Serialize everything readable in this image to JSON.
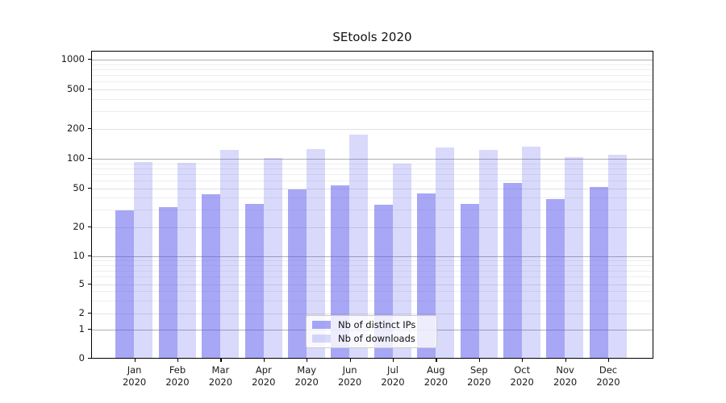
{
  "chart_data": {
    "type": "bar",
    "title": "SEtools 2020",
    "categories": [
      "Jan",
      "Feb",
      "Mar",
      "Apr",
      "May",
      "Jun",
      "Jul",
      "Aug",
      "Sep",
      "Oct",
      "Nov",
      "Dec"
    ],
    "category_year": "2020",
    "series": [
      {
        "name": "Nb of distinct IPs",
        "color": "rgba(80,80,235,0.5)",
        "values": [
          30,
          32,
          44,
          35,
          49,
          54,
          34,
          45,
          35,
          57,
          39,
          52
        ]
      },
      {
        "name": "Nb of downloads",
        "color": "rgba(80,80,235,0.22)",
        "values": [
          93,
          91,
          124,
          102,
          126,
          175,
          90,
          130,
          123,
          132,
          105,
          110
        ]
      }
    ],
    "y_ticks": [
      0,
      1,
      2,
      5,
      10,
      20,
      50,
      100,
      200,
      500,
      1000
    ],
    "scale": "symlog",
    "ylim": [
      0,
      1200
    ],
    "grid": true,
    "legend_position": "lower center",
    "colors": {
      "grid_major": "#b0b0b0",
      "grid_minor": "#eeeeee",
      "axis": "#000000"
    }
  }
}
